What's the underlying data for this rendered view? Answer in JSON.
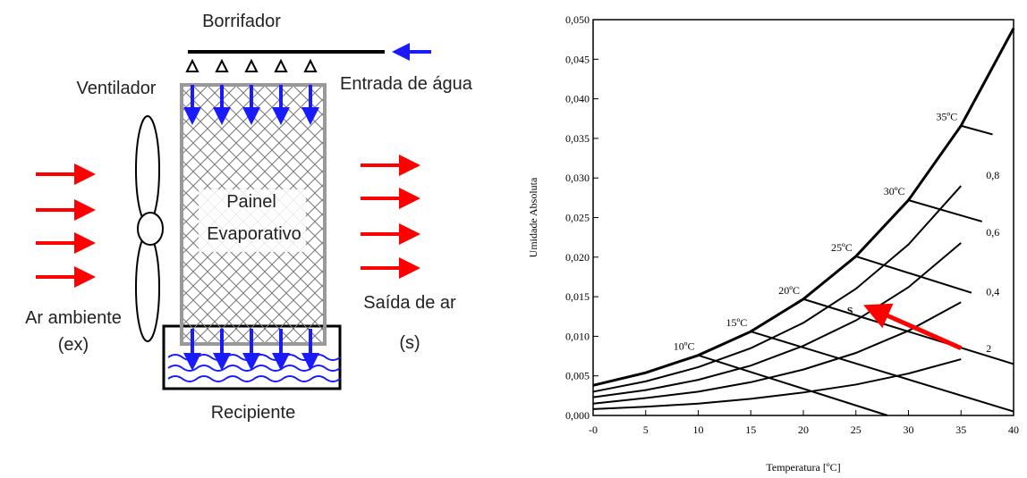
{
  "diagram": {
    "sprayer": "Borrifador",
    "fan": "Ventilador",
    "water_in": "Entrada de água",
    "panel": [
      "Painel",
      "Evaporativo"
    ],
    "air_in": [
      "Ar ambiente",
      "(ex)"
    ],
    "air_out": [
      "Saída de ar",
      "(s)"
    ],
    "container": "Recipiente"
  },
  "chart_data": {
    "type": "line",
    "x_label": "Temperatura [ºC]",
    "y_label": "Umidade Absoluta",
    "x": [
      0,
      5,
      10,
      15,
      20,
      25,
      30,
      35,
      40
    ],
    "series": [
      {
        "color": "#000000",
        "values": [
          0.0038,
          0.0054,
          0.0076,
          0.0106,
          0.0147,
          0.0201,
          0.0272,
          0.0366,
          0.0489
        ]
      },
      {
        "name": "0,8",
        "color": "#000000",
        "values": [
          0.003,
          0.0043,
          0.0061,
          0.0085,
          0.0117,
          0.016,
          0.0216,
          0.029,
          null
        ]
      },
      {
        "name": "0,6",
        "color": "#000000",
        "values": [
          0.0023,
          0.0032,
          0.0045,
          0.0063,
          0.0088,
          0.012,
          0.0162,
          0.0218,
          null
        ]
      },
      {
        "name": "0,4",
        "color": "#000000",
        "values": [
          0.0015,
          0.0022,
          0.003,
          0.0042,
          0.0058,
          0.0079,
          0.0107,
          0.0143,
          null
        ]
      },
      {
        "name": "2",
        "color": "#000000",
        "values": [
          0.0008,
          0.0011,
          0.0015,
          0.0021,
          0.0029,
          0.0039,
          0.0053,
          0.0071,
          null
        ]
      }
    ],
    "wet_bulb_lines": [
      {
        "label": "10ºC",
        "x": [
          10,
          28
        ],
        "values": [
          0.0076,
          0
        ]
      },
      {
        "label": "15ºC",
        "x": [
          15,
          40
        ],
        "values": [
          0.0106,
          0.0005
        ]
      },
      {
        "label": "20ºC",
        "x": [
          20,
          40
        ],
        "values": [
          0.0147,
          0.0065
        ]
      },
      {
        "label": "25ºC",
        "x": [
          25,
          36
        ],
        "values": [
          0.0201,
          0.0155
        ]
      },
      {
        "label": "30ºC",
        "x": [
          30,
          37
        ],
        "values": [
          0.0272,
          0.0245
        ]
      },
      {
        "label": "35ºC",
        "x": [
          35,
          38
        ],
        "values": [
          0.0366,
          0.0355
        ]
      }
    ],
    "annotation": {
      "text": "S",
      "x": 25,
      "y": 0.0135,
      "arrow_from": [
        35,
        0.0085
      ]
    },
    "arrow_color": "#ff0000",
    "xlim": [
      0,
      40
    ],
    "xticks": [
      {
        "value": 0,
        "label": "-0"
      },
      5,
      10,
      15,
      20,
      25,
      30,
      35,
      40
    ],
    "ylim": [
      0,
      0.05
    ],
    "yticks": [
      {
        "value": 0,
        "label": "0,000"
      },
      {
        "value": 0.005,
        "label": "0,005"
      },
      {
        "value": 0.01,
        "label": "0,010"
      },
      {
        "value": 0.015,
        "label": "0,015"
      },
      {
        "value": 0.02,
        "label": "0,020"
      },
      {
        "value": 0.025,
        "label": "0,025"
      },
      {
        "value": 0.03,
        "label": "0,030"
      },
      {
        "value": 0.035,
        "label": "0,035"
      },
      {
        "value": 0.04,
        "label": "0,040"
      },
      {
        "value": 0.045,
        "label": "0,045"
      },
      {
        "value": 0.05,
        "label": "0,050"
      }
    ]
  }
}
